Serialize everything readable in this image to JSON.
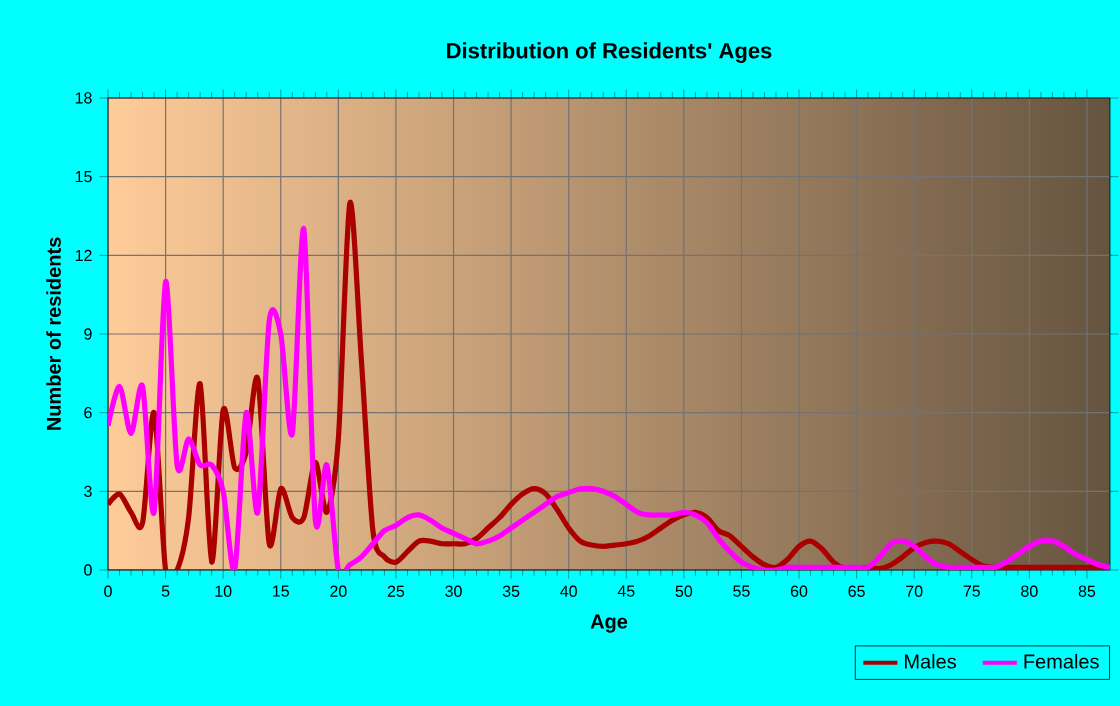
{
  "chart_data": {
    "type": "line",
    "title": "Distribution of Residents' Ages",
    "xlabel": "Age",
    "ylabel": "Number of residents",
    "x": [
      0,
      1,
      2,
      3,
      4,
      5,
      6,
      7,
      8,
      9,
      10,
      11,
      12,
      13,
      14,
      15,
      16,
      17,
      18,
      19,
      20,
      21,
      22,
      23,
      24,
      25,
      26,
      27,
      28,
      29,
      30,
      31,
      32,
      33,
      34,
      35,
      36,
      37,
      38,
      39,
      40,
      41,
      42,
      43,
      44,
      45,
      46,
      47,
      48,
      49,
      50,
      51,
      52,
      53,
      54,
      55,
      56,
      57,
      58,
      59,
      60,
      61,
      62,
      63,
      64,
      65,
      66,
      67,
      68,
      69,
      70,
      71,
      72,
      73,
      74,
      75,
      76,
      77,
      78,
      79,
      80,
      81,
      82,
      83,
      84,
      85,
      86,
      87
    ],
    "series": [
      {
        "name": "Males",
        "color": "#aa0000",
        "values": [
          2.5,
          2.9,
          2.2,
          1.8,
          6.0,
          0,
          0,
          2.0,
          7.1,
          0.3,
          6.1,
          3.9,
          4.5,
          7.3,
          1,
          3.1,
          2,
          2,
          4.1,
          2.2,
          5,
          14,
          8,
          1.5,
          0.5,
          0.3,
          0.7,
          1.1,
          1.1,
          1.0,
          1.0,
          1.0,
          1.2,
          1.6,
          2.0,
          2.5,
          2.9,
          3.1,
          2.9,
          2.3,
          1.6,
          1.1,
          0.95,
          0.9,
          0.95,
          1.0,
          1.1,
          1.3,
          1.6,
          1.9,
          2.1,
          2.2,
          2.0,
          1.5,
          1.3,
          0.9,
          0.5,
          0.2,
          0.1,
          0.4,
          0.9,
          1.1,
          0.8,
          0.3,
          0.05,
          0.05,
          0.1,
          0.05,
          0.2,
          0.5,
          0.85,
          1.05,
          1.1,
          1.0,
          0.7,
          0.4,
          0.15,
          0.1,
          0.1,
          0.1,
          0.1,
          0.1,
          0.1,
          0.1,
          0.1,
          0.1,
          0.1,
          0.1
        ]
      },
      {
        "name": "Females",
        "color": "#ff00ff",
        "values": [
          5.5,
          7,
          5.2,
          7,
          2.2,
          11,
          4,
          5,
          4,
          4,
          3,
          0,
          6,
          2.2,
          9.5,
          9,
          5.2,
          13,
          1.9,
          4,
          0,
          0.2,
          0.5,
          1,
          1.5,
          1.7,
          2.0,
          2.1,
          1.9,
          1.6,
          1.4,
          1.2,
          1.0,
          1.1,
          1.3,
          1.6,
          1.9,
          2.2,
          2.5,
          2.8,
          2.95,
          3.1,
          3.1,
          3.0,
          2.8,
          2.5,
          2.2,
          2.1,
          2.1,
          2.1,
          2.2,
          2.1,
          1.8,
          1.2,
          0.7,
          0.3,
          0.1,
          0,
          0,
          0.1,
          0.1,
          0.1,
          0.1,
          0.1,
          0.1,
          0.1,
          0.1,
          0.5,
          1.0,
          1.1,
          0.9,
          0.5,
          0.2,
          0.1,
          0.1,
          0.1,
          0.1,
          0.1,
          0.3,
          0.6,
          0.9,
          1.1,
          1.1,
          0.9,
          0.6,
          0.4,
          0.2,
          0.1
        ]
      }
    ],
    "xlim": [
      0,
      87
    ],
    "xticks": [
      0,
      5,
      10,
      15,
      20,
      25,
      30,
      35,
      40,
      45,
      50,
      55,
      60,
      65,
      70,
      75,
      80,
      85
    ],
    "ylim": [
      0,
      18
    ],
    "yticks": [
      0,
      3,
      6,
      9,
      12,
      15,
      18
    ],
    "grid": true,
    "legend": "bottom right",
    "marker": "none",
    "line_style": "solid"
  }
}
